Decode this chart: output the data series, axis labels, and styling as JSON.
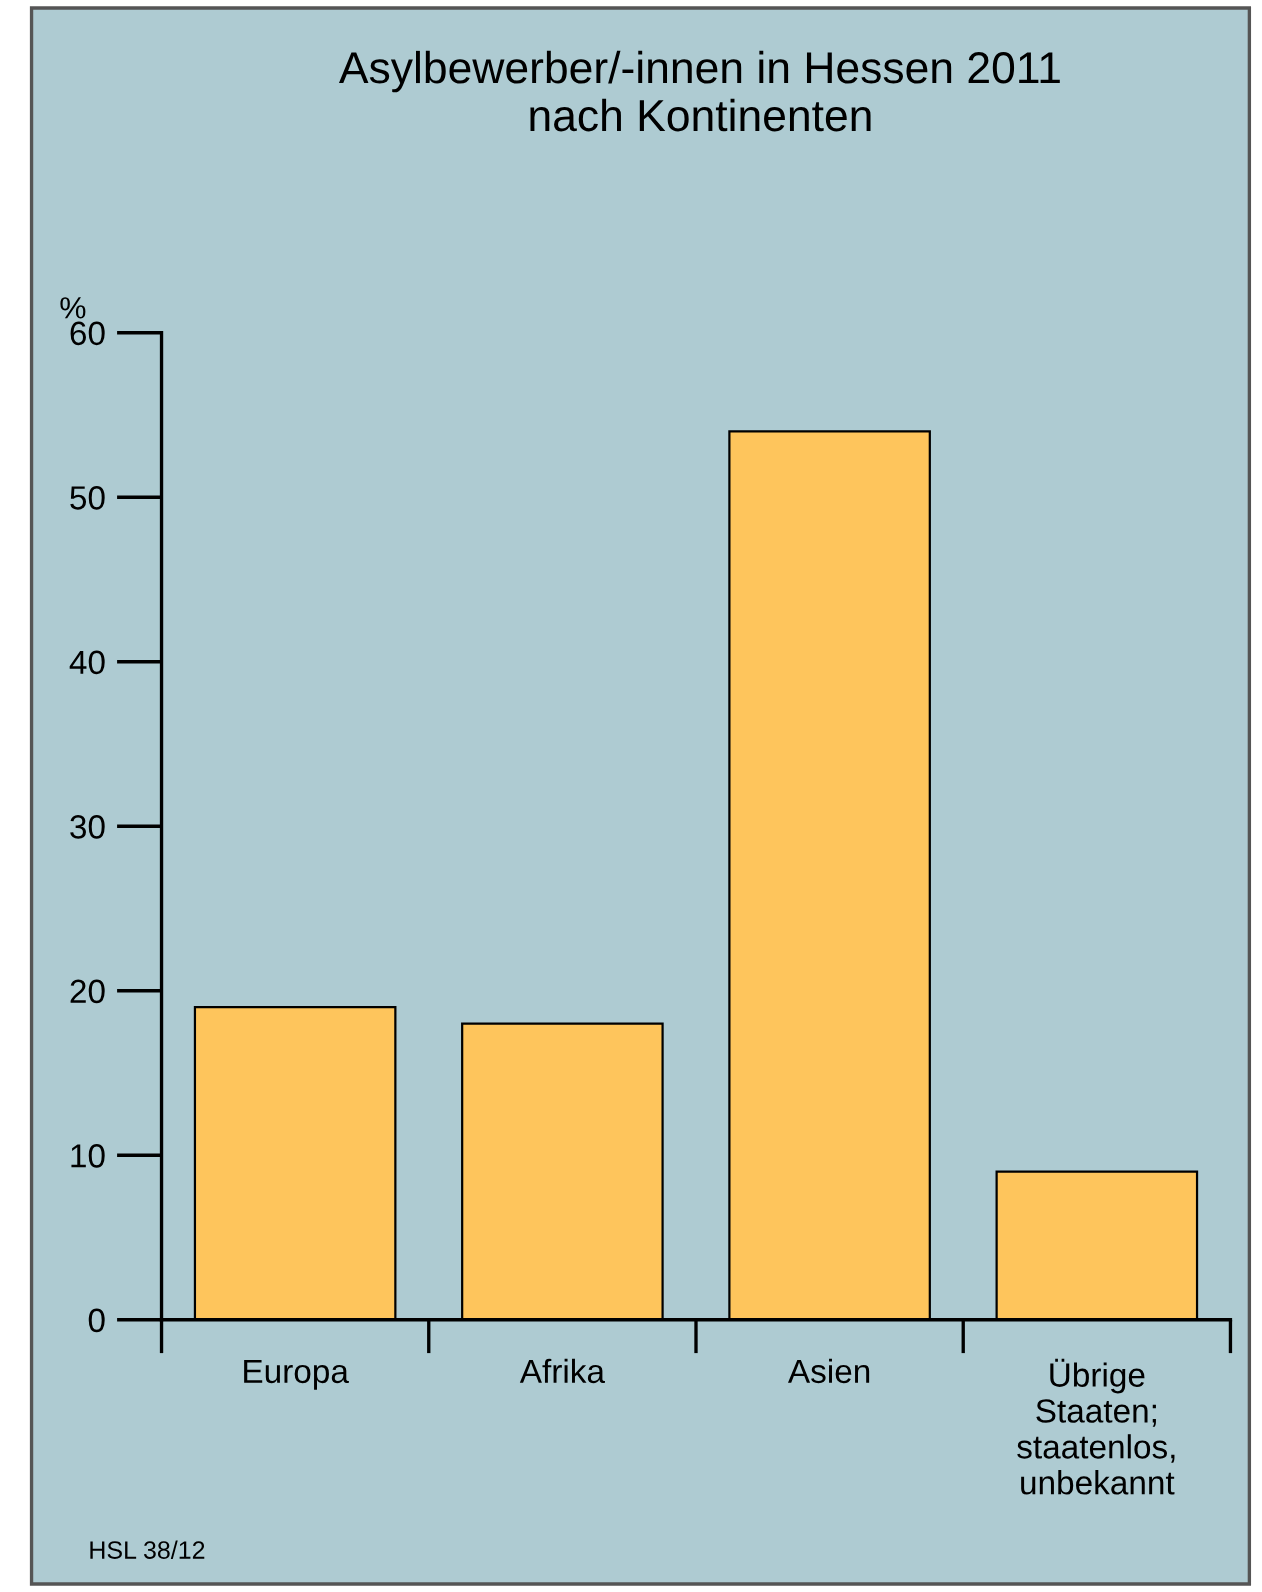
{
  "chart_data": {
    "type": "bar",
    "title": "Asylbewerber/-innen in Hessen 2011\nnach Kontinenten",
    "ylabel": "%",
    "categories": [
      "Europa",
      "Afrika",
      "Asien",
      "Übrige\nStaaten;\nstaatenlos,\nunbekannt"
    ],
    "values": [
      19,
      18,
      54,
      9
    ],
    "color": "#fec55c",
    "ylim": [
      0,
      60
    ],
    "yticks": [
      0,
      10,
      20,
      30,
      40,
      50,
      60
    ],
    "grid": false,
    "annotations": [
      "HSL 38/12"
    ]
  }
}
